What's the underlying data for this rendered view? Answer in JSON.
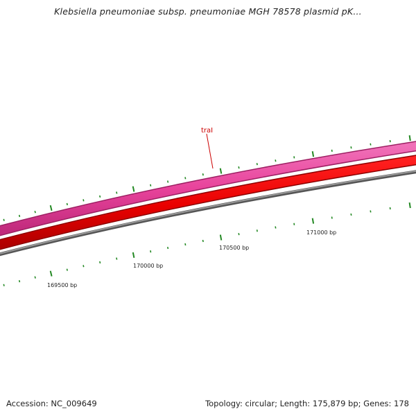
{
  "title": "Klebsiella pneumoniae subsp. pneumoniae MGH 78578 plasmid pK...",
  "accession": "Accession: NC_009649",
  "summary": "Topology: circular; Length: 175,879 bp; Genes: 178",
  "gene_label": "traI",
  "position_labels": [
    "169500 bp",
    "170000 bp",
    "170500 bp",
    "171000 bp"
  ],
  "colors": {
    "forward_track": "#e8439b",
    "reverse_track": "#ee0000",
    "backbone": "#777777",
    "tick": "#228822",
    "gene_label": "#cc0000",
    "text": "#222222"
  }
}
